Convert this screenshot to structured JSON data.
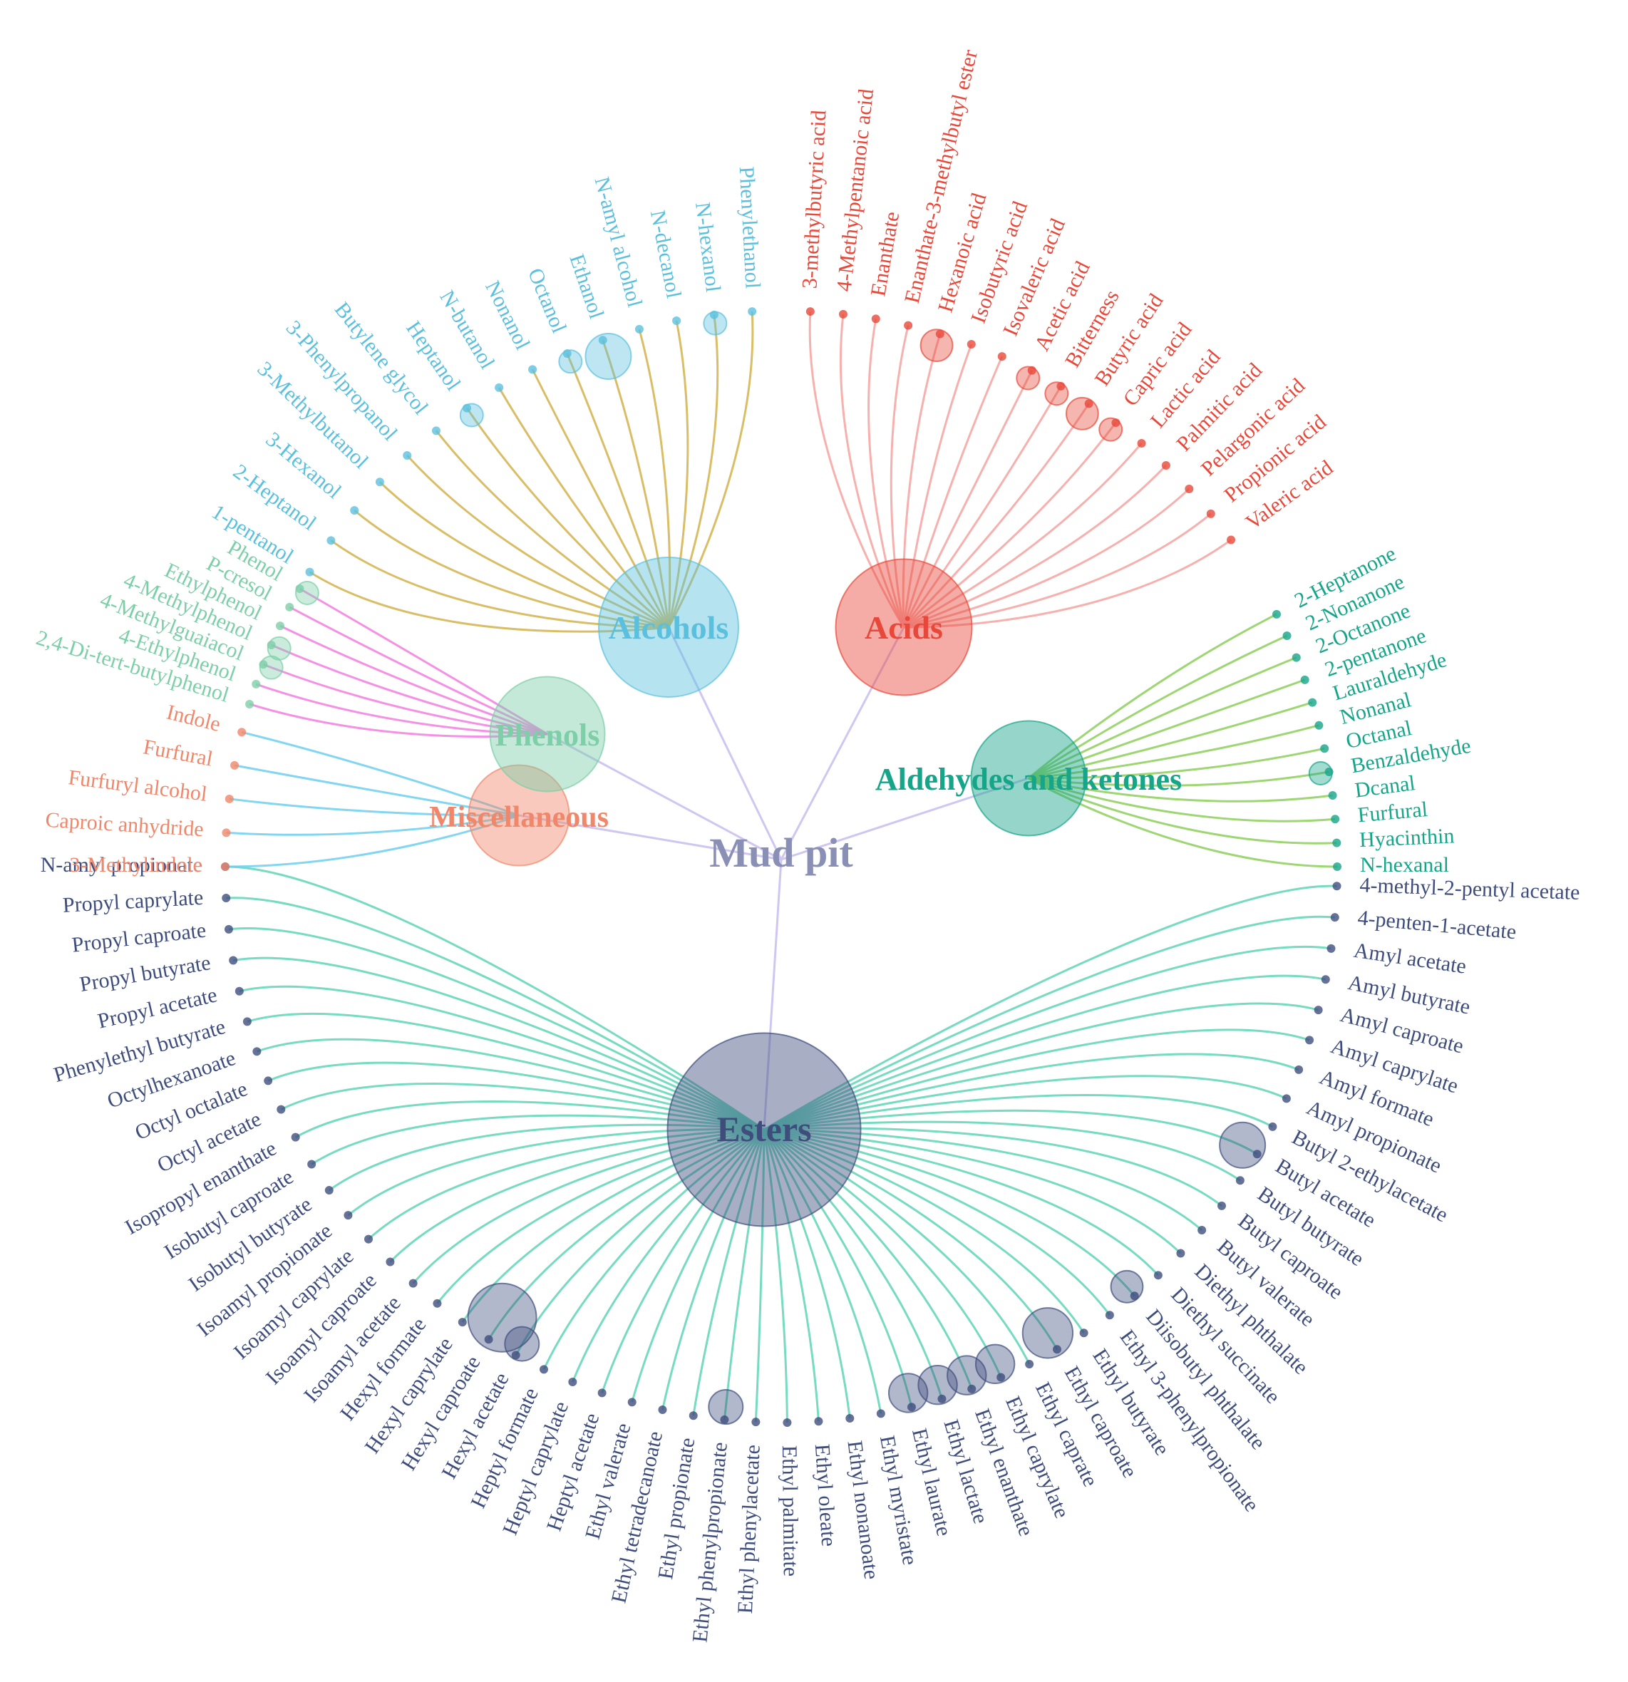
{
  "root": {
    "label": "Mud pit",
    "color": "#8a8fb5"
  },
  "trunk_color": "#cfc6f2",
  "groups": [
    {
      "id": "alcohols",
      "label": "Alcohols",
      "color": "#5bc0de",
      "link_color": "#d4b34c",
      "size": 1.0,
      "leaves": [
        {
          "label": "Phenylethanol",
          "size": 0
        },
        {
          "label": "N-hexanol",
          "size": 1
        },
        {
          "label": "N-decanol",
          "size": 0
        },
        {
          "label": "N-amyl alcohol",
          "size": 0
        },
        {
          "label": "Ethanol",
          "size": 2
        },
        {
          "label": "Octanol",
          "size": 1
        },
        {
          "label": "Nonanol",
          "size": 0
        },
        {
          "label": "N-butanol",
          "size": 0
        },
        {
          "label": "Heptanol",
          "size": 1
        },
        {
          "label": "Butylene glycol",
          "size": 0
        },
        {
          "label": "3-Phenylpropanol",
          "size": 0
        },
        {
          "label": "3-Methylbutanol",
          "size": 0
        },
        {
          "label": "3-Hexanol",
          "size": 0
        },
        {
          "label": "2-Heptanol",
          "size": 0
        },
        {
          "label": "1-pentanol",
          "size": 0
        }
      ]
    },
    {
      "id": "acids",
      "label": "Acids",
      "color": "#e8483a",
      "link_color": "#f4a3a0",
      "size": 0.95,
      "leaves": [
        {
          "label": "3-methylbutyric acid",
          "size": 0
        },
        {
          "label": "4-Methylpentanoic acid",
          "size": 0
        },
        {
          "label": "Enanthate",
          "size": 0
        },
        {
          "label": "Enanthate-3-methylbutyl ester",
          "size": 0
        },
        {
          "label": "Hexanoic acid",
          "size": 1.4
        },
        {
          "label": "Isobutyric acid",
          "size": 0
        },
        {
          "label": "Isovaleric acid",
          "size": 0
        },
        {
          "label": "Acetic acid",
          "size": 1
        },
        {
          "label": "Bitterness",
          "size": 1
        },
        {
          "label": "Butyric acid",
          "size": 1.4
        },
        {
          "label": "Capric acid",
          "size": 1
        },
        {
          "label": "Lactic acid",
          "size": 0
        },
        {
          "label": "Palmitic acid",
          "size": 0
        },
        {
          "label": "Pelargonic acid",
          "size": 0
        },
        {
          "label": "Propionic acid",
          "size": 0
        },
        {
          "label": "Valeric acid",
          "size": 0
        }
      ]
    },
    {
      "id": "aldehydes-ketones",
      "label": "Aldehydes and ketones",
      "color": "#17a589",
      "link_color": "#8dcf5b",
      "size": 0.65,
      "leaves": [
        {
          "label": "2-Heptanone",
          "size": 0
        },
        {
          "label": "2-Nonanone",
          "size": 0
        },
        {
          "label": "2-Octanone",
          "size": 0
        },
        {
          "label": "2-pentanone",
          "size": 0
        },
        {
          "label": "Lauraldehyde",
          "size": 0
        },
        {
          "label": "Nonanal",
          "size": 0
        },
        {
          "label": "Octanal",
          "size": 0
        },
        {
          "label": "Benzaldehyde",
          "size": 1
        },
        {
          "label": "Dcanal",
          "size": 0
        },
        {
          "label": "Furfural",
          "size": 0
        },
        {
          "label": "Hyacinthin",
          "size": 0
        },
        {
          "label": "N-hexanal",
          "size": 0
        }
      ]
    },
    {
      "id": "esters",
      "label": "Esters",
      "color": "#3f4d7d",
      "link_color": "#5ed5b5",
      "size": 1.75,
      "leaves": [
        {
          "label": "4-methyl-2-pentyl acetate",
          "size": 0
        },
        {
          "label": "4-penten-1-acetate",
          "size": 0
        },
        {
          "label": "Amyl acetate",
          "size": 0
        },
        {
          "label": "Amyl butyrate",
          "size": 0
        },
        {
          "label": "Amyl caproate",
          "size": 0
        },
        {
          "label": "Amyl caprylate",
          "size": 0
        },
        {
          "label": "Amyl formate",
          "size": 0
        },
        {
          "label": "Amyl propionate",
          "size": 0
        },
        {
          "label": "Butyl 2-ethylacetate",
          "size": 0
        },
        {
          "label": "Butyl acetate",
          "size": 2
        },
        {
          "label": "Butyl butyrate",
          "size": 0
        },
        {
          "label": "Butyl caproate",
          "size": 0
        },
        {
          "label": "Butyl valerate",
          "size": 0
        },
        {
          "label": "Diethyl phthalate",
          "size": 0
        },
        {
          "label": "Diethyl succinate",
          "size": 0
        },
        {
          "label": "Diisobutyl phthalate",
          "size": 1.4
        },
        {
          "label": "Ethyl 3-phenylpropionate",
          "size": 0
        },
        {
          "label": "Ethyl butyrate",
          "size": 0
        },
        {
          "label": "Ethyl caproate",
          "size": 2.2
        },
        {
          "label": "Ethyl caprate",
          "size": 0
        },
        {
          "label": "Ethyl caprylate",
          "size": 1.7
        },
        {
          "label": "Ethyl enanthate",
          "size": 1.7
        },
        {
          "label": "Ethyl lactate",
          "size": 1.7
        },
        {
          "label": "Ethyl laurate",
          "size": 1.7
        },
        {
          "label": "Ethyl myristate",
          "size": 0
        },
        {
          "label": "Ethyl nonanoate",
          "size": 0
        },
        {
          "label": "Ethyl oleate",
          "size": 0
        },
        {
          "label": "Ethyl palmitate",
          "size": 0
        },
        {
          "label": "Ethyl phenylacetate",
          "size": 0
        },
        {
          "label": "Ethyl phenylpropionate",
          "size": 1.5
        },
        {
          "label": "Ethyl propionate",
          "size": 0
        },
        {
          "label": "Ethyl tetradecanoate",
          "size": 0
        },
        {
          "label": "Ethyl valerate",
          "size": 0
        },
        {
          "label": "Heptyl acetate",
          "size": 0
        },
        {
          "label": "Heptyl caprylate",
          "size": 0
        },
        {
          "label": "Heptyl formate",
          "size": 0
        },
        {
          "label": "Hexyl acetate",
          "size": 1.5
        },
        {
          "label": "Hexyl caproate",
          "size": 3
        },
        {
          "label": "Hexyl caprylate",
          "size": 0
        },
        {
          "label": "Hexyl formate",
          "size": 0
        },
        {
          "label": "Isoamyl acetate",
          "size": 0
        },
        {
          "label": "Isoamyl caproate",
          "size": 0
        },
        {
          "label": "Isoamyl caprylate",
          "size": 0
        },
        {
          "label": "Isoamyl propionate",
          "size": 0
        },
        {
          "label": "Isobutyl butyrate",
          "size": 0
        },
        {
          "label": "Isobutyl caproate",
          "size": 0
        },
        {
          "label": "Isopropyl enanthate",
          "size": 0
        },
        {
          "label": "Octyl acetate",
          "size": 0
        },
        {
          "label": "Octyl octalate",
          "size": 0
        },
        {
          "label": "Octylhexanoate",
          "size": 0
        },
        {
          "label": "Phenylethyl butyrate",
          "size": 0
        },
        {
          "label": "Propyl acetate",
          "size": 0
        },
        {
          "label": "Propyl butyrate",
          "size": 0
        },
        {
          "label": "Propyl caproate",
          "size": 0
        },
        {
          "label": "Propyl caprylate",
          "size": 0
        },
        {
          "label": "N-amyl propionate",
          "size": 0
        }
      ]
    },
    {
      "id": "miscellaneous",
      "label": "Miscellaneous",
      "color": "#f0876a",
      "link_color": "#6ccfee",
      "size": 0.45,
      "leaves": [
        {
          "label": "3-Methylindole",
          "size": 0
        },
        {
          "label": "Caproic anhydride",
          "size": 0
        },
        {
          "label": "Furfuryl alcohol",
          "size": 0
        },
        {
          "label": "Furfural",
          "size": 0
        },
        {
          "label": "Indole",
          "size": 0
        }
      ]
    },
    {
      "id": "phenols",
      "label": "Phenols",
      "color": "#7dcfa8",
      "link_color": "#f27ee0",
      "size": 0.65,
      "leaves": [
        {
          "label": "2,4-Di-tert-butylphenol",
          "size": 0
        },
        {
          "label": "4-Ethylphenol",
          "size": 0
        },
        {
          "label": "4-Methylguaiacol",
          "size": 1
        },
        {
          "label": "4-Methylphenol",
          "size": 1
        },
        {
          "label": "Ethylphenol",
          "size": 0
        },
        {
          "label": "P-cresol",
          "size": 0
        },
        {
          "label": "Phenol",
          "size": 1
        }
      ]
    }
  ]
}
